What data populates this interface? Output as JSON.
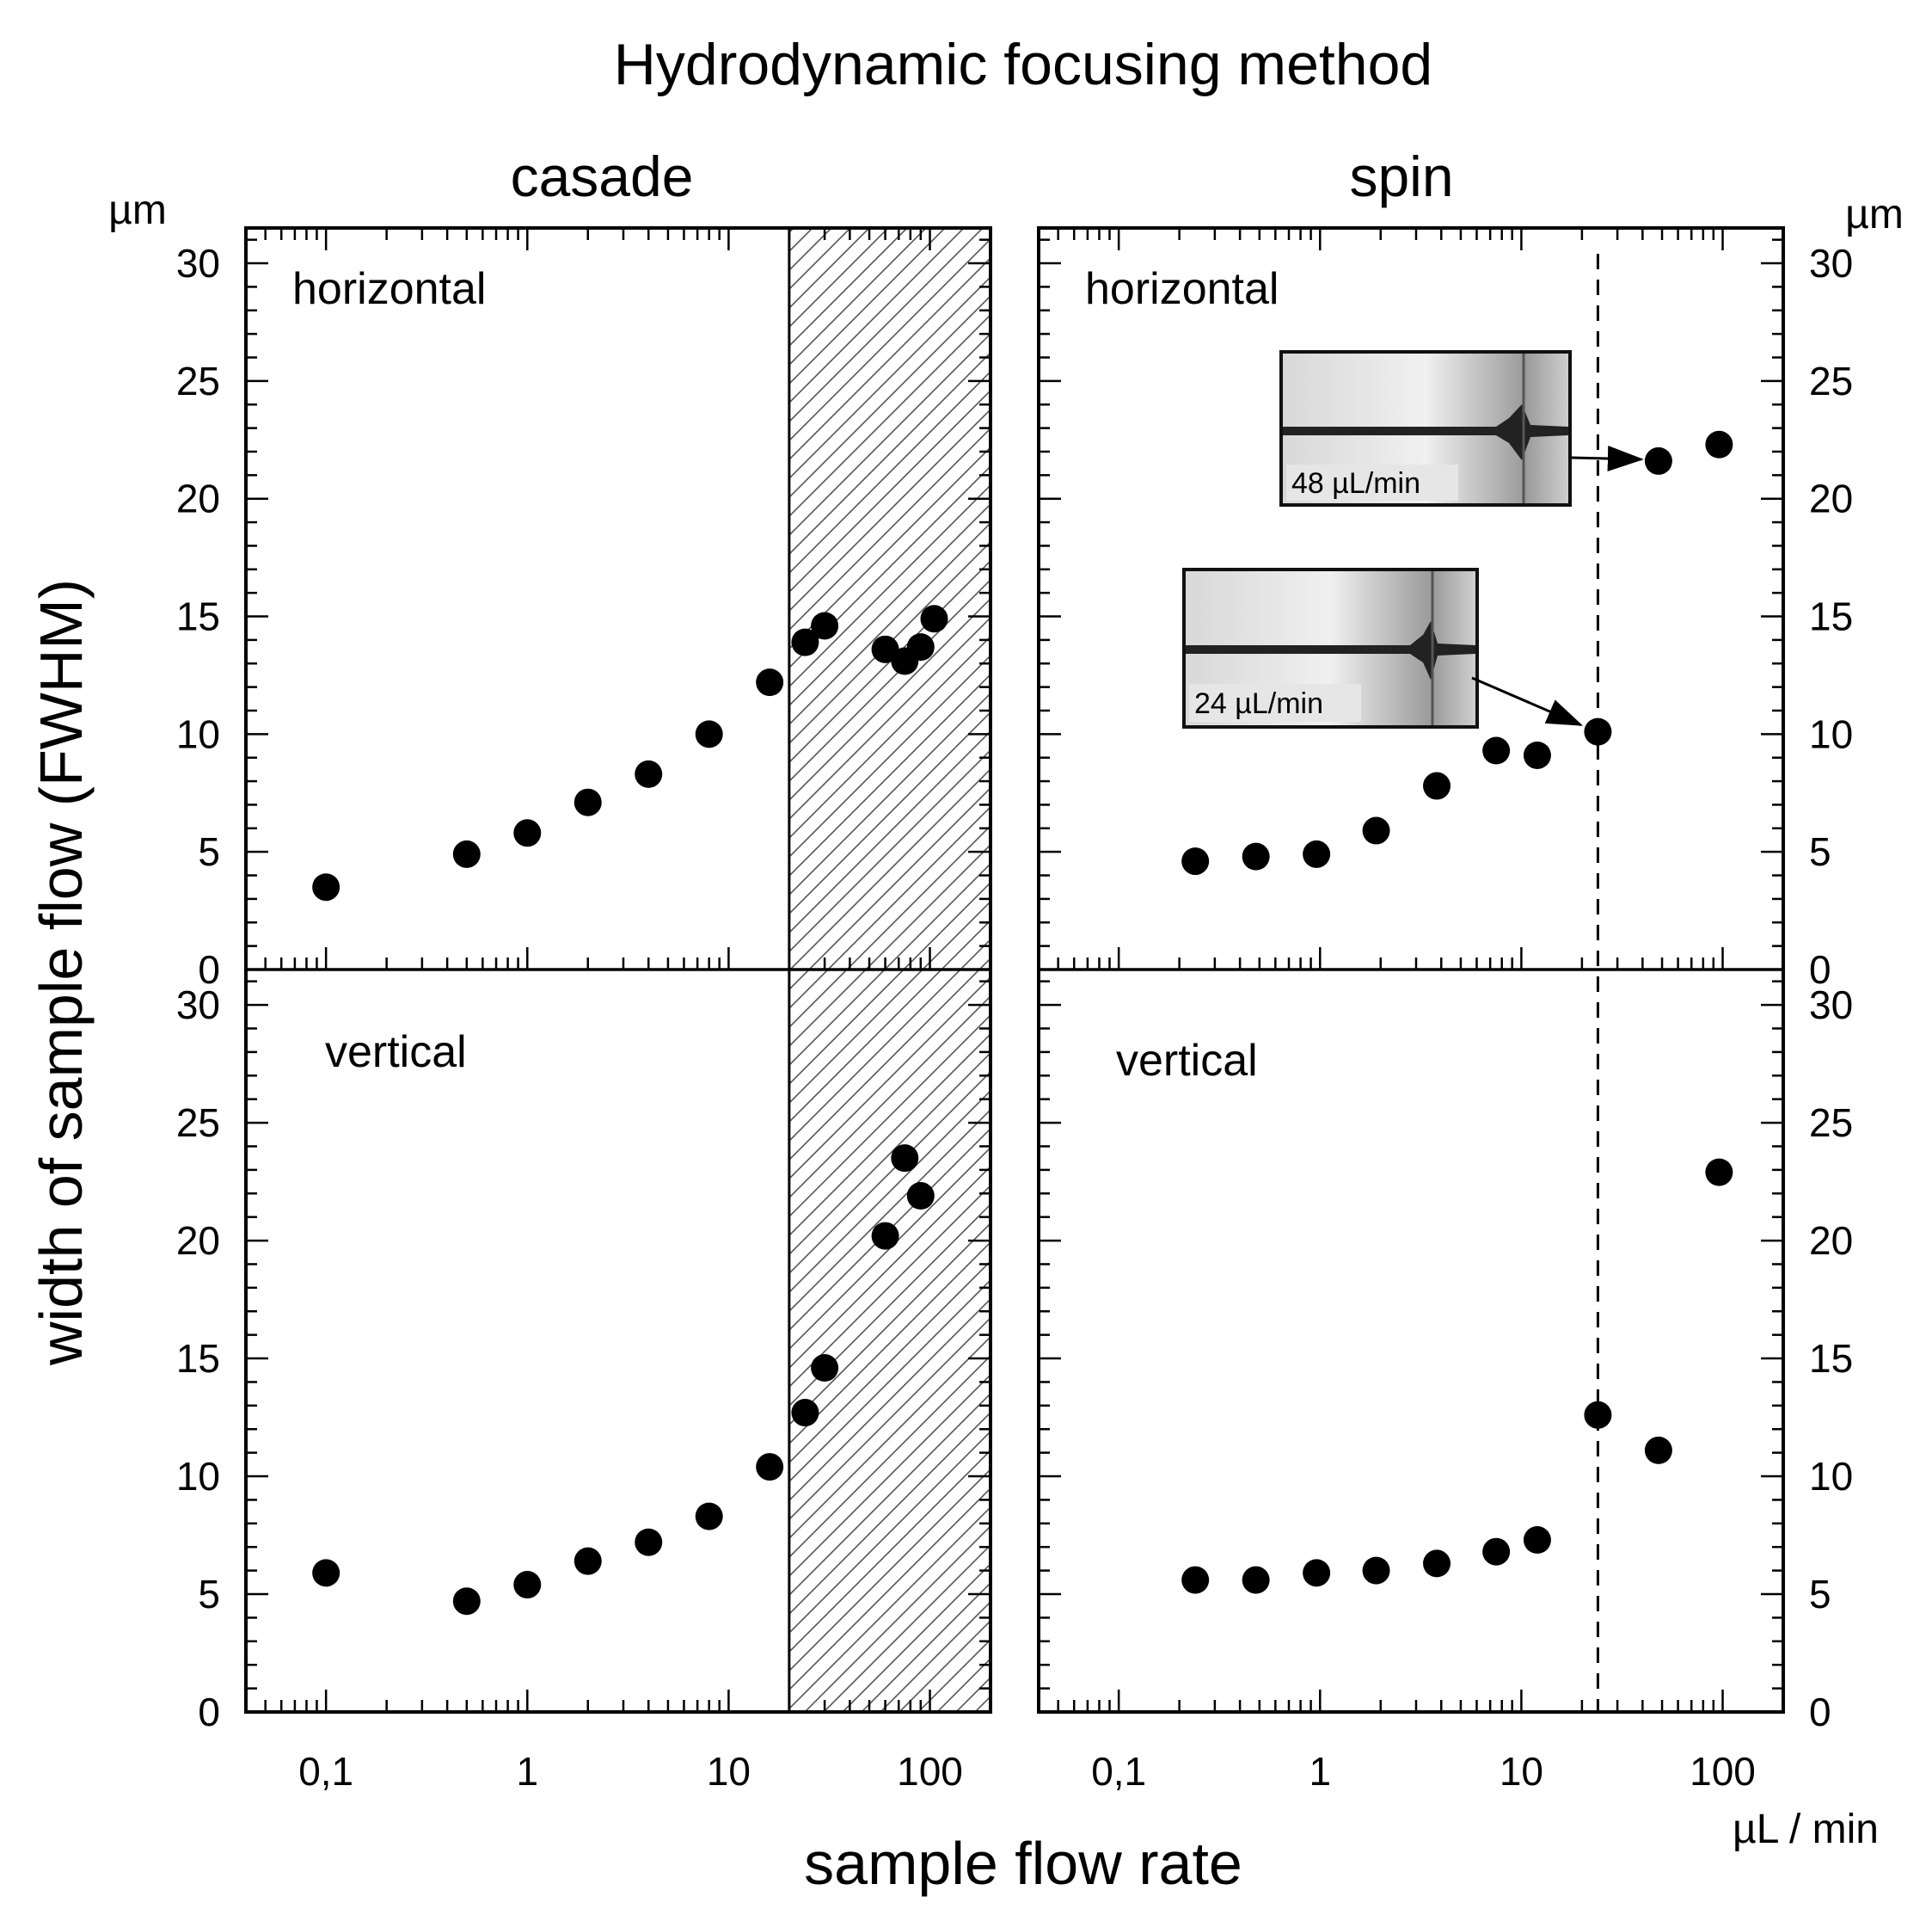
{
  "chart_data": {
    "type": "scatter",
    "title": "Hydrodynamic focusing method",
    "xlabel": "sample flow rate",
    "ylabel": "width of sample flow (FWHM)",
    "x_unit": "µL / min",
    "y_unit": "µm",
    "x_scale": "log",
    "xlim": [
      0.04,
      200
    ],
    "ylim": [
      0,
      32
    ],
    "x_tick_values": [
      0.1,
      1,
      10,
      100
    ],
    "x_tick_labels": [
      "0,1",
      "1",
      "10",
      "100"
    ],
    "y_tick_values": [
      0,
      5,
      10,
      15,
      20,
      25,
      30
    ],
    "y_tick_labels": [
      "0",
      "5",
      "10",
      "15",
      "20",
      "25",
      "30"
    ],
    "columns": [
      {
        "name": "casade",
        "y_unit_label": "µm",
        "shaded_region": {
          "x_start": 20,
          "x_end": 200,
          "pattern": "diagonal hatch"
        },
        "panels": [
          {
            "name": "horizontal",
            "x": [
              0.1,
              0.5,
              1,
              2,
              4,
              8,
              16,
              24,
              30,
              60,
              75,
              90,
              105
            ],
            "y": [
              3.5,
              4.9,
              5.8,
              7.1,
              8.3,
              10.0,
              12.2,
              13.9,
              14.6,
              13.6,
              13.1,
              13.7,
              14.9
            ]
          },
          {
            "name": "vertical",
            "x": [
              0.1,
              0.5,
              1,
              2,
              4,
              8,
              16,
              24,
              30,
              60,
              75,
              90
            ],
            "y": [
              5.9,
              4.7,
              5.4,
              6.4,
              7.2,
              8.3,
              10.4,
              12.7,
              14.6,
              20.2,
              23.5,
              21.9
            ]
          }
        ]
      },
      {
        "name": "spin",
        "y_unit_label": "µm",
        "x_unit_label": "µL / min",
        "reference_line": {
          "x": 24,
          "style": "dashed"
        },
        "panels": [
          {
            "name": "horizontal",
            "x": [
              0.24,
              0.48,
              0.96,
              1.9,
              3.8,
              7.5,
              12,
              24,
              48,
              96
            ],
            "y": [
              4.6,
              4.8,
              4.9,
              5.9,
              7.8,
              9.3,
              9.1,
              10.1,
              21.6,
              22.3
            ],
            "insets": [
              {
                "label": "48 µL/min",
                "points_to_x": 48
              },
              {
                "label": "24 µL/min",
                "points_to_x": 24
              }
            ]
          },
          {
            "name": "vertical",
            "x": [
              0.24,
              0.48,
              0.96,
              1.9,
              3.8,
              7.5,
              12,
              24,
              48,
              96
            ],
            "y": [
              5.6,
              5.6,
              5.9,
              6.0,
              6.3,
              6.8,
              7.3,
              12.6,
              11.1,
              22.9
            ]
          }
        ]
      }
    ]
  }
}
